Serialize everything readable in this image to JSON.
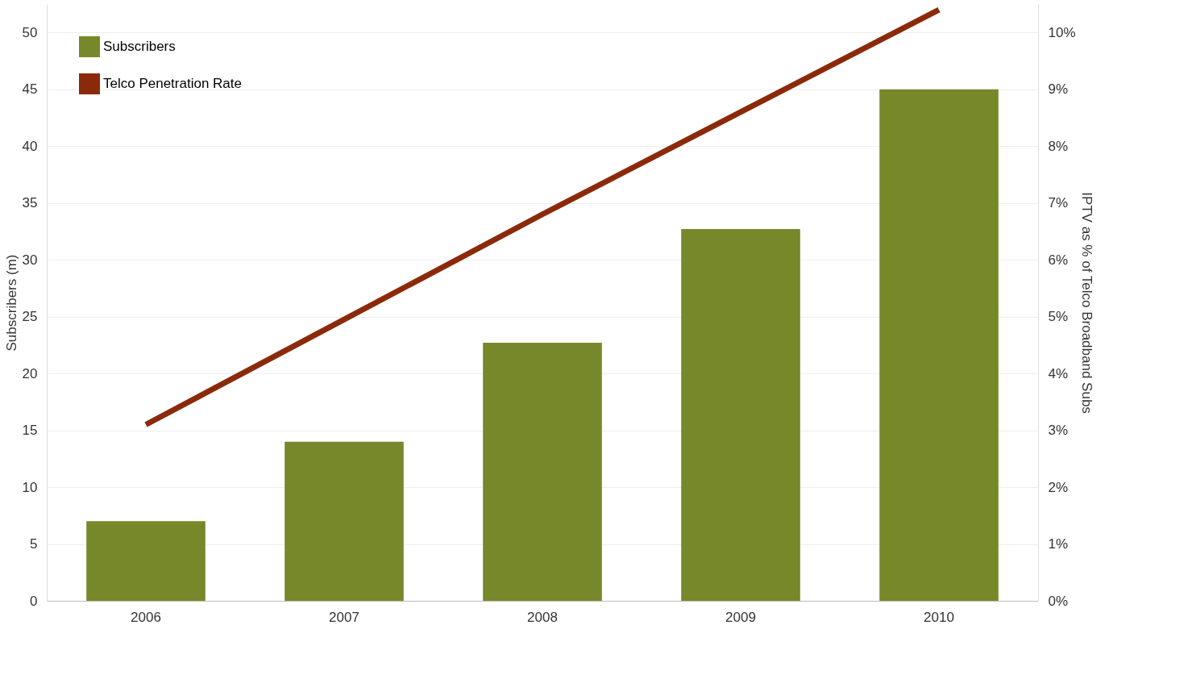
{
  "chart_data": {
    "type": "bar",
    "categories": [
      "2006",
      "2007",
      "2008",
      "2009",
      "2010"
    ],
    "ylabel": "Subscribers (m)",
    "y2label": "IPTV as % of Telco Broadband Subs",
    "series": [
      {
        "name": "Subscribers",
        "color": "#76882a",
        "values": [
          7,
          14,
          22.7,
          32.7,
          45
        ]
      },
      {
        "name": "Telco Penetration Rate",
        "type": "line",
        "axis": "y2",
        "color": "#8b2a0b",
        "values": [
          3.1,
          4.95,
          6.8,
          8.6,
          10.4
        ]
      }
    ],
    "ylim": [
      0,
      52.5
    ],
    "yticks": [
      0,
      5,
      10,
      15,
      20,
      25,
      30,
      35,
      40,
      45,
      50
    ],
    "y2lim": [
      0,
      10.5
    ],
    "y2ticks": [
      {
        "value": 0,
        "label": "0%"
      },
      {
        "value": 1,
        "label": "1%"
      },
      {
        "value": 2,
        "label": "2%"
      },
      {
        "value": 3,
        "label": "3%"
      },
      {
        "value": 4,
        "label": "4%"
      },
      {
        "value": 5,
        "label": "5%"
      },
      {
        "value": 6,
        "label": "6%"
      },
      {
        "value": 7,
        "label": "7%"
      },
      {
        "value": 8,
        "label": "8%"
      },
      {
        "value": 9,
        "label": "9%"
      },
      {
        "value": 10,
        "label": "10%"
      }
    ],
    "grid": "y",
    "legend": "top left",
    "line_style": "solid",
    "marker": "none"
  }
}
